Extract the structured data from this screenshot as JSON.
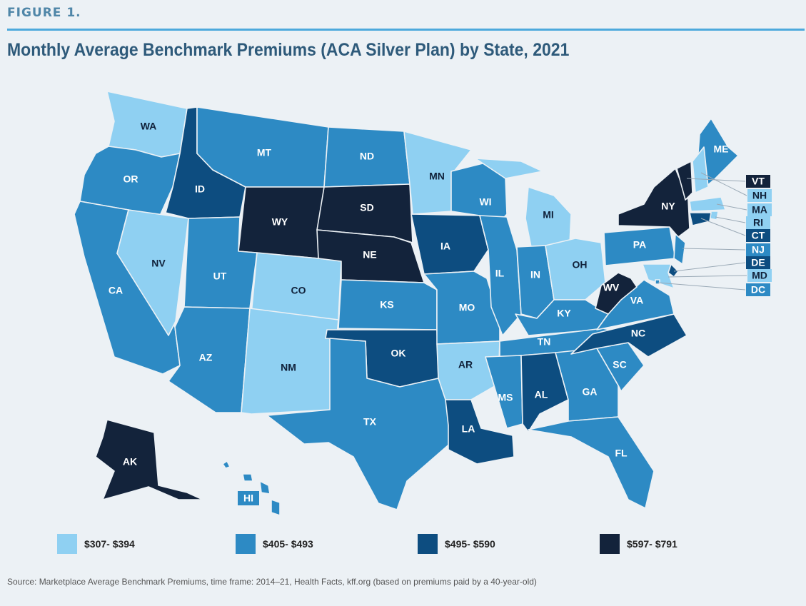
{
  "figure_label": "FIGURE 1.",
  "title": "Monthly Average Benchmark Premiums (ACA Silver Plan) by State, 2021",
  "source": "Source: Marketplace Average Benchmark Premiums, time frame: 2014–21, Health Facts, kff.org (based on premiums paid by a 40-year-old)",
  "legend": [
    {
      "label": "$307- $394",
      "color": "#8fd0f2",
      "tier": 1
    },
    {
      "label": "$405- $493",
      "color": "#2d8ac4",
      "tier": 2
    },
    {
      "label": "$495- $590",
      "color": "#0d4d80",
      "tier": 3
    },
    {
      "label": "$597- $791",
      "color": "#13233b",
      "tier": 4
    }
  ],
  "states": [
    {
      "abbr": "WA",
      "tier": 1
    },
    {
      "abbr": "OR",
      "tier": 2
    },
    {
      "abbr": "CA",
      "tier": 2
    },
    {
      "abbr": "NV",
      "tier": 1
    },
    {
      "abbr": "ID",
      "tier": 3
    },
    {
      "abbr": "MT",
      "tier": 2
    },
    {
      "abbr": "WY",
      "tier": 4
    },
    {
      "abbr": "UT",
      "tier": 2
    },
    {
      "abbr": "AZ",
      "tier": 2
    },
    {
      "abbr": "CO",
      "tier": 1
    },
    {
      "abbr": "NM",
      "tier": 1
    },
    {
      "abbr": "ND",
      "tier": 2
    },
    {
      "abbr": "SD",
      "tier": 4
    },
    {
      "abbr": "NE",
      "tier": 4
    },
    {
      "abbr": "KS",
      "tier": 2
    },
    {
      "abbr": "OK",
      "tier": 3
    },
    {
      "abbr": "TX",
      "tier": 2
    },
    {
      "abbr": "MN",
      "tier": 1
    },
    {
      "abbr": "IA",
      "tier": 3
    },
    {
      "abbr": "MO",
      "tier": 2
    },
    {
      "abbr": "AR",
      "tier": 1
    },
    {
      "abbr": "LA",
      "tier": 3
    },
    {
      "abbr": "WI",
      "tier": 2
    },
    {
      "abbr": "IL",
      "tier": 2
    },
    {
      "abbr": "MI",
      "tier": 1
    },
    {
      "abbr": "IN",
      "tier": 2
    },
    {
      "abbr": "OH",
      "tier": 1
    },
    {
      "abbr": "KY",
      "tier": 2
    },
    {
      "abbr": "TN",
      "tier": 2
    },
    {
      "abbr": "MS",
      "tier": 2
    },
    {
      "abbr": "AL",
      "tier": 3
    },
    {
      "abbr": "GA",
      "tier": 2
    },
    {
      "abbr": "FL",
      "tier": 2
    },
    {
      "abbr": "SC",
      "tier": 2
    },
    {
      "abbr": "NC",
      "tier": 3
    },
    {
      "abbr": "VA",
      "tier": 2
    },
    {
      "abbr": "WV",
      "tier": 4
    },
    {
      "abbr": "PA",
      "tier": 2
    },
    {
      "abbr": "NY",
      "tier": 4
    },
    {
      "abbr": "ME",
      "tier": 2
    },
    {
      "abbr": "AK",
      "tier": 4
    },
    {
      "abbr": "HI",
      "tier": 2
    },
    {
      "abbr": "VT",
      "tier": 4
    },
    {
      "abbr": "NH",
      "tier": 1
    },
    {
      "abbr": "MA",
      "tier": 1
    },
    {
      "abbr": "RI",
      "tier": 1
    },
    {
      "abbr": "CT",
      "tier": 3
    },
    {
      "abbr": "NJ",
      "tier": 2
    },
    {
      "abbr": "DE",
      "tier": 3
    },
    {
      "abbr": "MD",
      "tier": 1
    },
    {
      "abbr": "DC",
      "tier": 2
    }
  ]
}
